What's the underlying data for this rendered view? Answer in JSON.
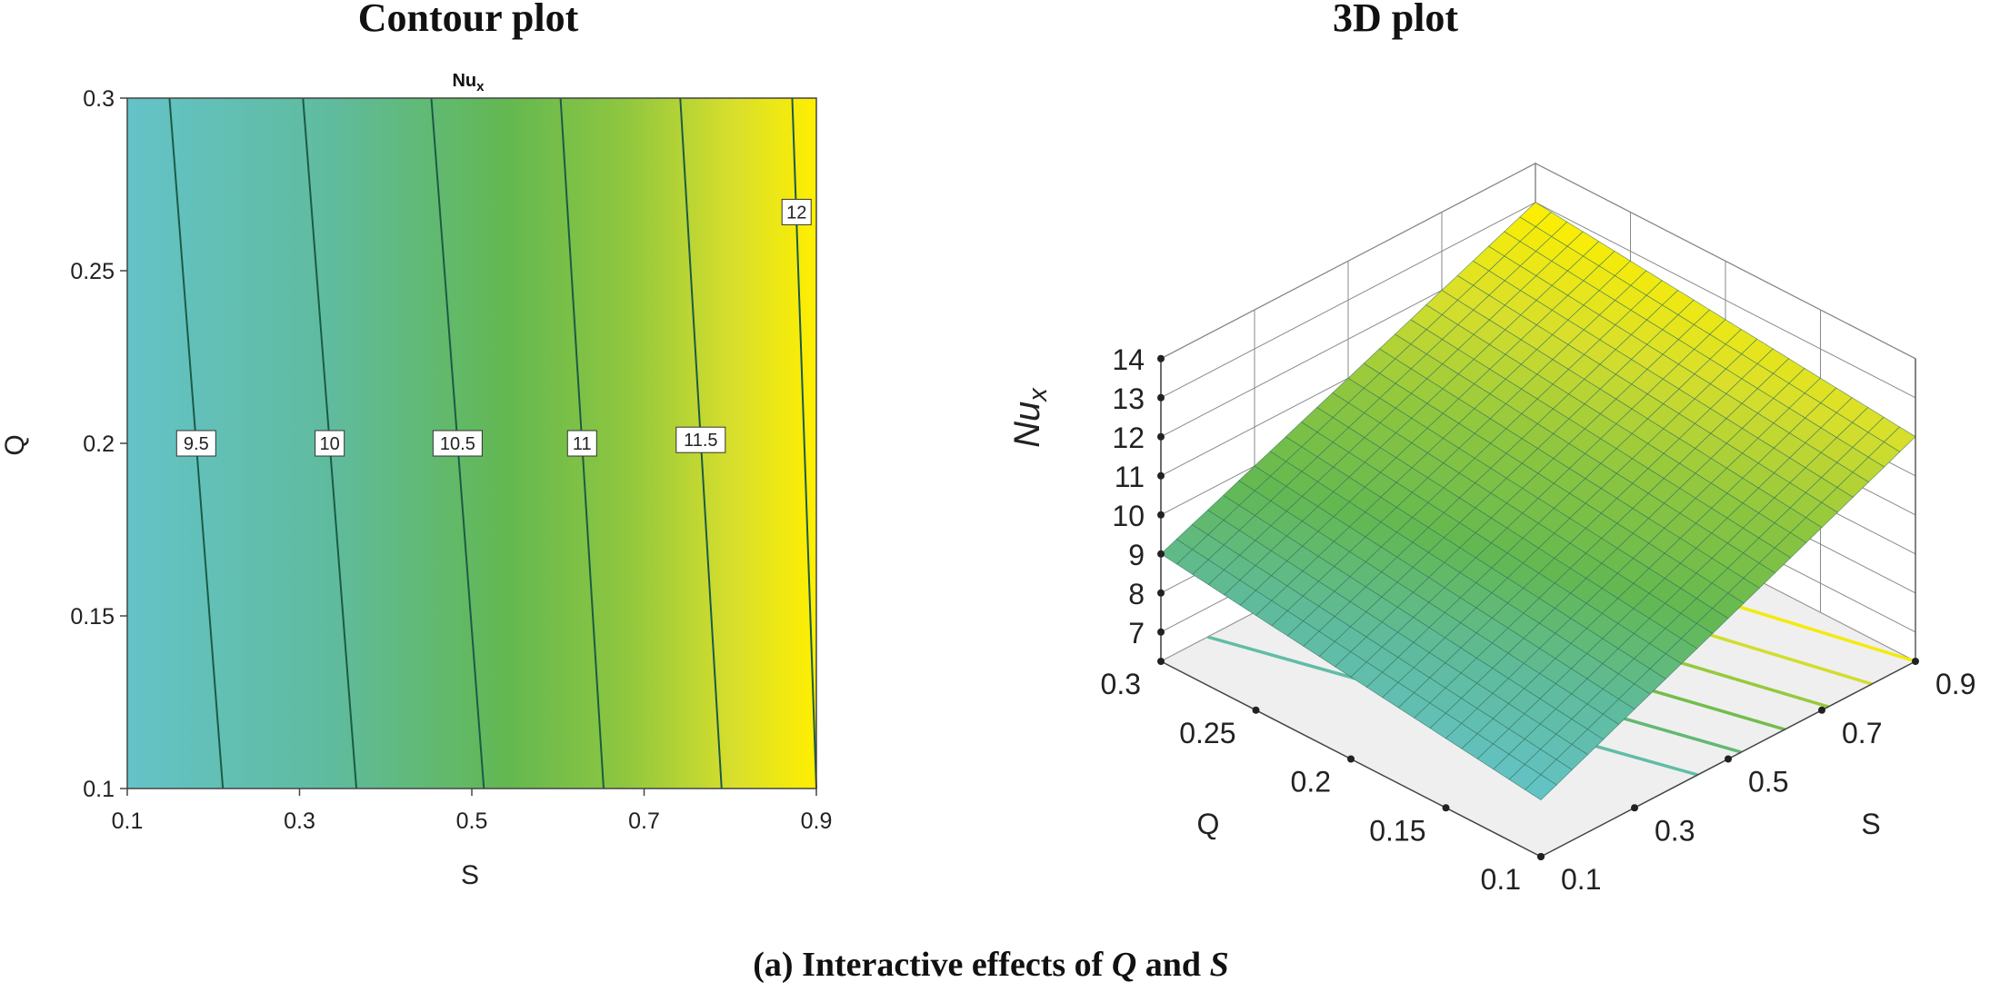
{
  "caption": {
    "prefix": "(a)  Interactive effects of ",
    "var1": "Q",
    "mid": " and ",
    "var2": "S"
  },
  "chart_data": [
    {
      "type": "contour",
      "title": "Contour plot",
      "subtitle_base": "Nu",
      "subtitle_sub": "x",
      "xlabel": "S",
      "ylabel": "Q",
      "xlim": [
        0.1,
        0.9
      ],
      "ylim": [
        0.1,
        0.3
      ],
      "x_ticks": [
        "0.1",
        "0.3",
        "0.5",
        "0.7",
        "0.9"
      ],
      "y_ticks": [
        "0.1",
        "0.15",
        "0.2",
        "0.25",
        "0.3"
      ],
      "colormap": [
        "#64c3c8",
        "#5fbb9d",
        "#63b851",
        "#8ec63f",
        "#d8df2c",
        "#ffef00"
      ],
      "fill_range": [
        9.0,
        12.2
      ],
      "contour_lines": [
        {
          "level": 9.5,
          "label": "9.5",
          "s_at_q_low": 0.211,
          "s_at_q_high": 0.149,
          "label_q": 0.2
        },
        {
          "level": 10,
          "label": "10",
          "s_at_q_low": 0.366,
          "s_at_q_high": 0.304,
          "label_q": 0.2
        },
        {
          "level": 10.5,
          "label": "10.5",
          "s_at_q_low": 0.514,
          "s_at_q_high": 0.453,
          "label_q": 0.2
        },
        {
          "level": 11,
          "label": "11",
          "s_at_q_low": 0.653,
          "s_at_q_high": 0.603,
          "label_q": 0.2
        },
        {
          "level": 11.5,
          "label": "11.5",
          "s_at_q_low": 0.79,
          "s_at_q_high": 0.742,
          "label_q": 0.201
        },
        {
          "level": 12,
          "label": "12",
          "s_at_q_low": 0.9,
          "s_at_q_high": 0.872,
          "label_q": 0.267,
          "label_s": 0.877
        }
      ]
    },
    {
      "type": "surface3d",
      "title": "3D plot",
      "zlabel_base": "Nu",
      "zlabel_sub": "x",
      "xlabel": "Q",
      "ylabel": "S",
      "q_ticks": [
        "0.1",
        "0.15",
        "0.2",
        "0.25",
        "0.3"
      ],
      "s_ticks": [
        "0.1",
        "0.3",
        "0.5",
        "0.7",
        "0.9"
      ],
      "z_ticks": [
        "7",
        "8",
        "9",
        "10",
        "11",
        "12",
        "13",
        "14"
      ],
      "qlim": [
        0.1,
        0.3
      ],
      "slim": [
        0.1,
        0.9
      ],
      "zlim": [
        6.25,
        14
      ],
      "corner_values": [
        {
          "q": 0.1,
          "s": 0.1,
          "nu": 7.7
        },
        {
          "q": 0.3,
          "s": 0.1,
          "nu": 9.0
        },
        {
          "q": 0.1,
          "s": 0.9,
          "nu": 12.0
        },
        {
          "q": 0.3,
          "s": 0.9,
          "nu": 13.0
        }
      ]
    }
  ]
}
